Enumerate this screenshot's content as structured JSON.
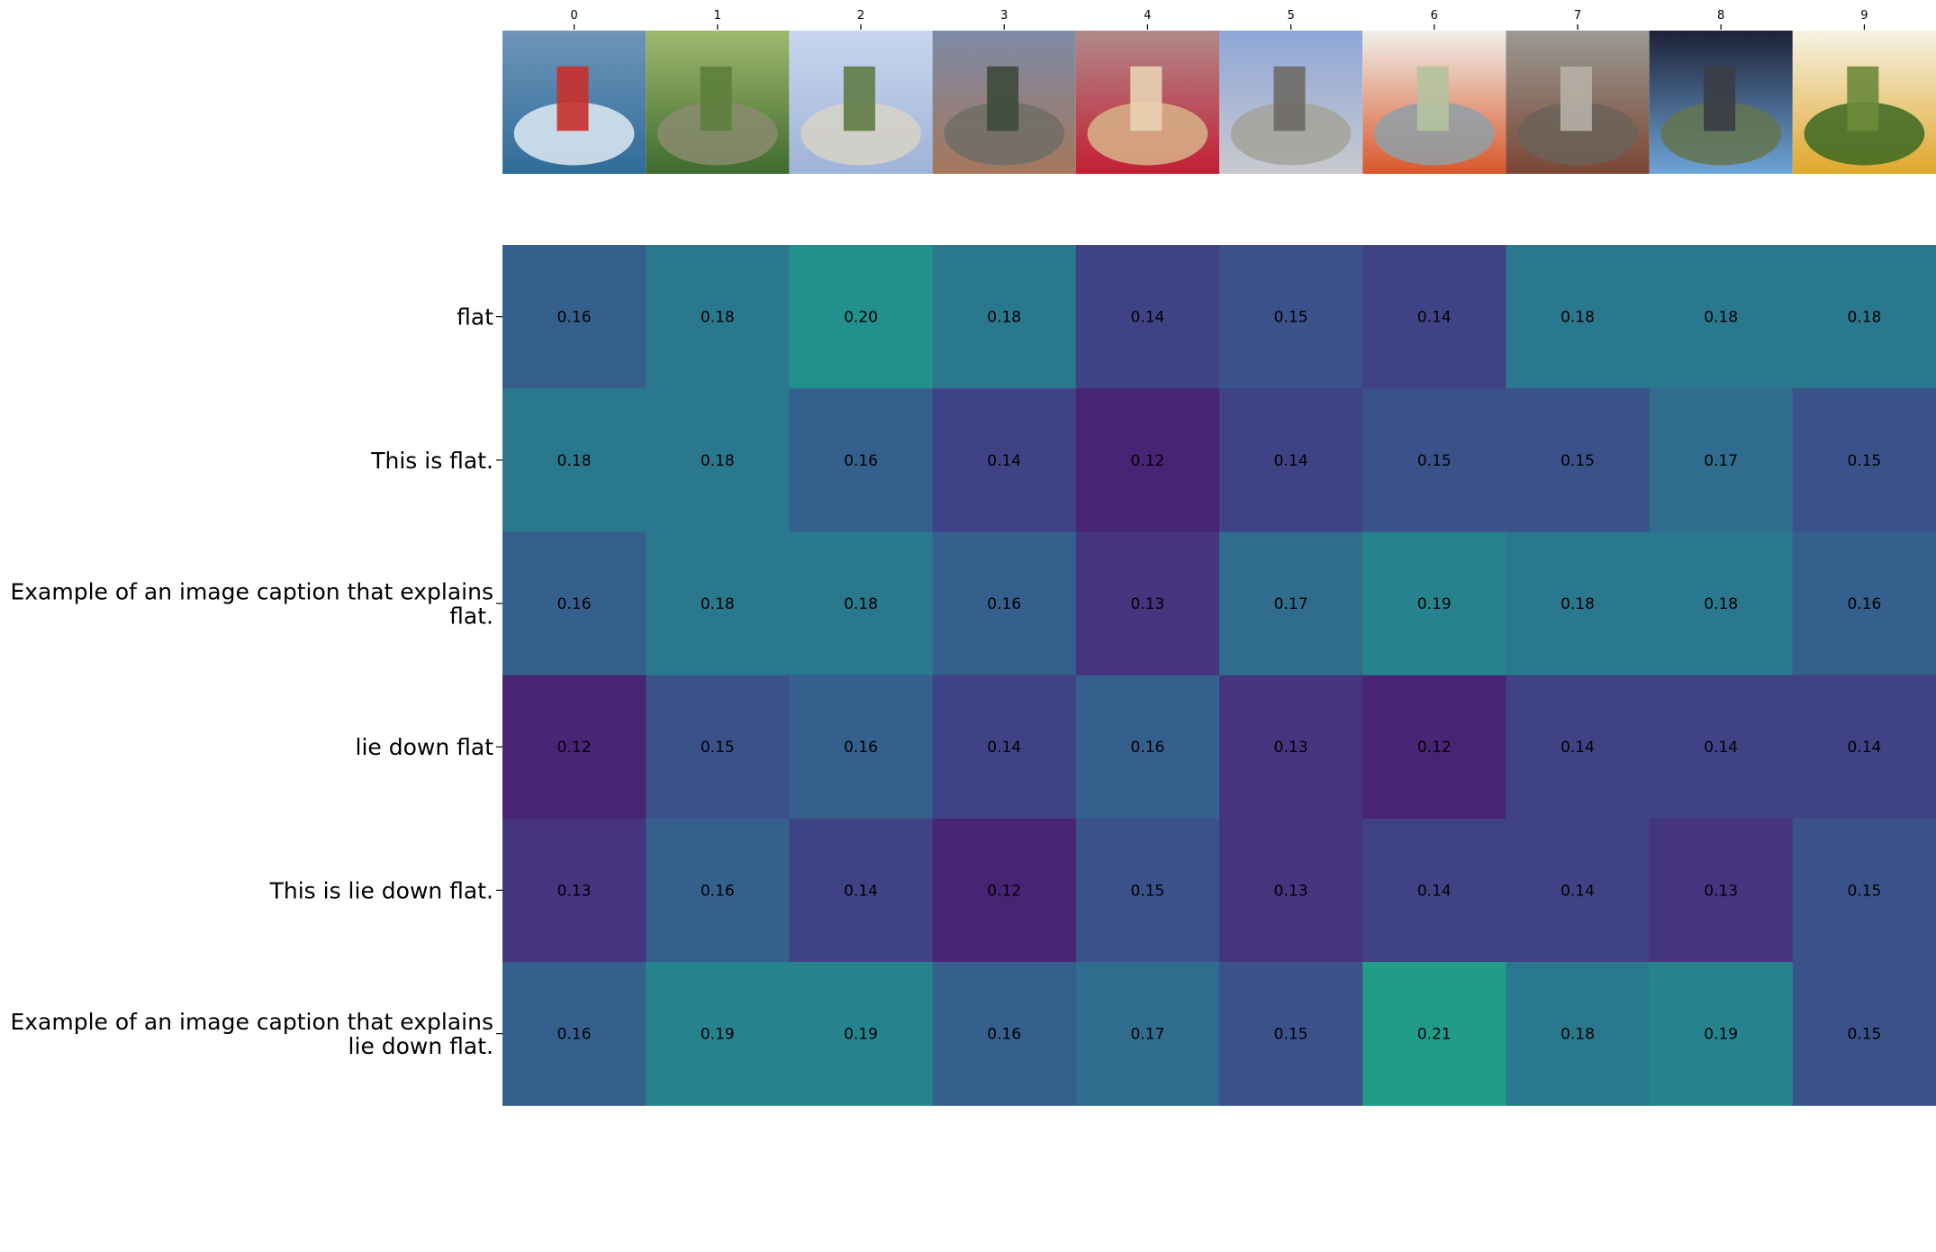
{
  "chart_data": {
    "type": "heatmap",
    "title": "",
    "xlabel": "",
    "ylabel": "",
    "columns": [
      "0",
      "1",
      "2",
      "3",
      "4",
      "5",
      "6",
      "7",
      "8",
      "9"
    ],
    "column_images": [
      "surfer-on-wave-icon",
      "forest-stream-icon",
      "hillside-village-icon",
      "old-stone-building-icon",
      "person-lying-on-board-icon",
      "apartment-towers-icon",
      "cartoon-figure-drawing-icon",
      "rusty-locomotive-icon",
      "stone-arches-mountain-icon",
      "botanical-flower-illustration-icon"
    ],
    "rows": [
      [
        "flat"
      ],
      [
        "This is flat."
      ],
      [
        "Example of an image caption that explains",
        "flat."
      ],
      [
        "lie down flat"
      ],
      [
        "This is lie down flat."
      ],
      [
        "Example of an image caption that explains",
        "lie down flat."
      ]
    ],
    "values": [
      [
        0.16,
        0.18,
        0.2,
        0.18,
        0.14,
        0.15,
        0.14,
        0.18,
        0.18,
        0.18
      ],
      [
        0.18,
        0.18,
        0.16,
        0.14,
        0.12,
        0.14,
        0.15,
        0.15,
        0.17,
        0.15
      ],
      [
        0.16,
        0.18,
        0.18,
        0.16,
        0.13,
        0.17,
        0.19,
        0.18,
        0.18,
        0.16
      ],
      [
        0.12,
        0.15,
        0.16,
        0.14,
        0.16,
        0.13,
        0.12,
        0.14,
        0.14,
        0.14
      ],
      [
        0.13,
        0.16,
        0.14,
        0.12,
        0.15,
        0.13,
        0.14,
        0.14,
        0.13,
        0.15
      ],
      [
        0.16,
        0.19,
        0.19,
        0.16,
        0.17,
        0.15,
        0.21,
        0.18,
        0.19,
        0.15
      ]
    ],
    "cell_labels": [
      [
        "0.16",
        "0.18",
        "0.20",
        "0.18",
        "0.14",
        "0.15",
        "0.14",
        "0.18",
        "0.18",
        "0.18"
      ],
      [
        "0.18",
        "0.18",
        "0.16",
        "0.14",
        "0.12",
        "0.14",
        "0.15",
        "0.15",
        "0.17",
        "0.15"
      ],
      [
        "0.16",
        "0.18",
        "0.18",
        "0.16",
        "0.13",
        "0.17",
        "0.19",
        "0.18",
        "0.18",
        "0.16"
      ],
      [
        "0.12",
        "0.15",
        "0.16",
        "0.14",
        "0.16",
        "0.13",
        "0.12",
        "0.14",
        "0.14",
        "0.14"
      ],
      [
        "0.13",
        "0.16",
        "0.14",
        "0.12",
        "0.15",
        "0.13",
        "0.14",
        "0.14",
        "0.13",
        "0.15"
      ],
      [
        "0.16",
        "0.19",
        "0.19",
        "0.16",
        "0.17",
        "0.15",
        "0.21",
        "0.18",
        "0.19",
        "0.15"
      ]
    ],
    "colormap": "viridis",
    "color_range": [
      0.1,
      0.3
    ],
    "grid": false,
    "legend": "none",
    "colors": {
      "viridis_stops": [
        "#440154",
        "#482878",
        "#3e4989",
        "#31688e",
        "#26828e",
        "#1f9e89",
        "#35b779",
        "#6ece58",
        "#b5de2b",
        "#fde725"
      ]
    }
  }
}
